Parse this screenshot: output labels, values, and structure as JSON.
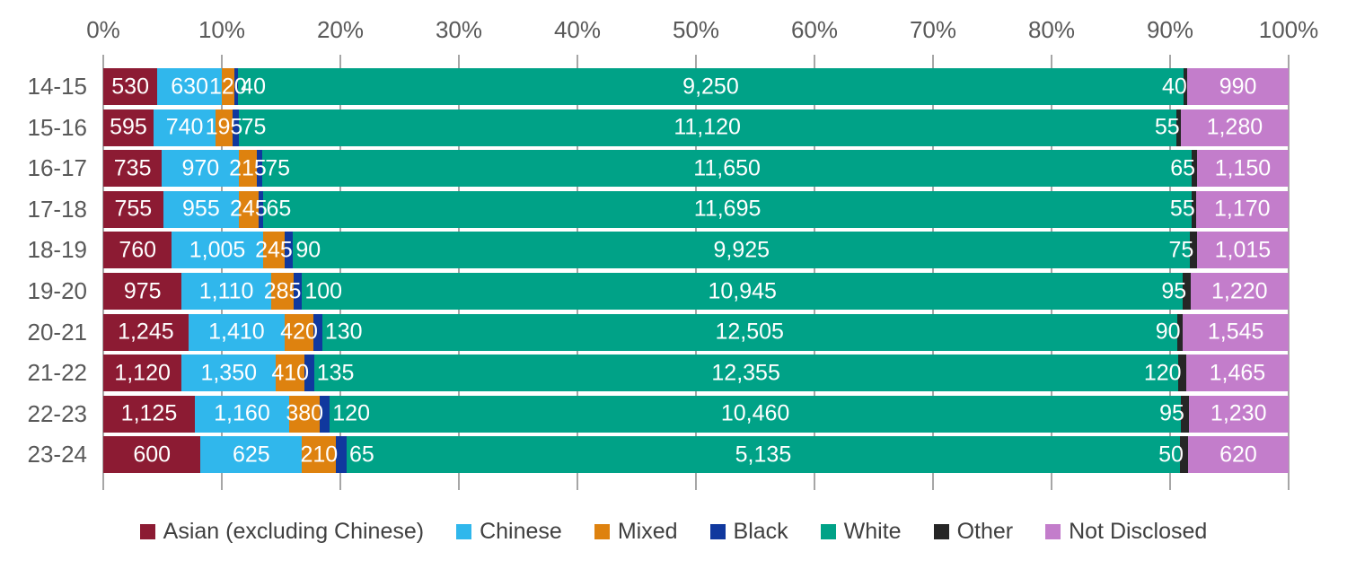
{
  "chart_data": {
    "type": "bar",
    "subtype": "stacked-horizontal-100percent",
    "title": "",
    "xlabel": "",
    "ylabel": "",
    "xlim": [
      0,
      100
    ],
    "grid": true,
    "axis_position": "top",
    "x_ticks": [
      "0%",
      "10%",
      "20%",
      "30%",
      "40%",
      "50%",
      "60%",
      "70%",
      "80%",
      "90%",
      "100%"
    ],
    "categories": [
      "14-15",
      "15-16",
      "16-17",
      "17-18",
      "18-19",
      "19-20",
      "20-21",
      "21-22",
      "22-23",
      "23-24"
    ],
    "series": [
      {
        "name": "Asian (excluding Chinese)",
        "color": "#8C1B33",
        "values": [
          530,
          595,
          735,
          755,
          760,
          975,
          1245,
          1120,
          1125,
          600
        ]
      },
      {
        "name": "Chinese",
        "color": "#30B7EC",
        "values": [
          630,
          740,
          970,
          955,
          1005,
          1110,
          1410,
          1350,
          1160,
          625
        ]
      },
      {
        "name": "Mixed",
        "color": "#DE820F",
        "values": [
          120,
          195,
          215,
          245,
          245,
          285,
          420,
          410,
          380,
          210
        ]
      },
      {
        "name": "Black",
        "color": "#10389E",
        "values": [
          40,
          75,
          75,
          65,
          90,
          100,
          130,
          135,
          120,
          65
        ]
      },
      {
        "name": "White",
        "color": "#00A287",
        "values": [
          9250,
          11120,
          11650,
          11695,
          9925,
          10945,
          12505,
          12355,
          10460,
          5135
        ]
      },
      {
        "name": "Other",
        "color": "#262626",
        "values": [
          40,
          55,
          65,
          55,
          75,
          95,
          90,
          120,
          95,
          50
        ]
      },
      {
        "name": "Not Disclosed",
        "color": "#C37DCB",
        "values": [
          990,
          1280,
          1150,
          1170,
          1015,
          1220,
          1545,
          1465,
          1230,
          620
        ]
      }
    ],
    "legend": {
      "position": "bottom",
      "entries": [
        "Asian (excluding Chinese)",
        "Chinese",
        "Mixed",
        "Black",
        "White",
        "Other",
        "Not Disclosed"
      ]
    }
  },
  "style": {
    "gridline_color": "#a6a6a6",
    "axis_text_color": "#595959",
    "legend_text_color": "#404040",
    "bar_label_color": "#ffffff"
  }
}
